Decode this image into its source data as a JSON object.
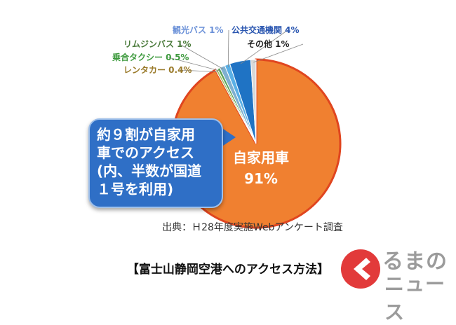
{
  "chart_data": {
    "type": "pie",
    "categories": [
      "自家用車",
      "レンタカー",
      "乗合タクシー",
      "リムジンバス",
      "観光バス",
      "公共交通機関",
      "その他"
    ],
    "values": [
      91,
      0.4,
      0.5,
      1,
      1,
      4,
      1
    ],
    "colors": [
      "#f08030",
      "#a4c068",
      "#5aa35a",
      "#7fb0d0",
      "#5ab0e6",
      "#1f73c4",
      "#d8d8d8"
    ],
    "slice_labels": [
      "",
      "レンタカー 0.4%",
      "乗合タクシー 0.5%",
      "リムジンバス 1%",
      "観光バス 1%",
      "公共交通機関 4%",
      "その他 1%"
    ],
    "label_colors": [
      "#ffffff",
      "#9a7a2a",
      "#3e9a3e",
      "#4a7a3a",
      "#6a90d8",
      "#2a56b0",
      "#222222"
    ],
    "main_label_name": "自家用車",
    "main_label_value": "91%",
    "title": ""
  },
  "callout": {
    "text": "約９割が自家用\n車でのアクセス\n(内、半数が国道\n１号を利用)"
  },
  "source_text": "出典：Ｈ28年度実施Webアンケート調査",
  "caption_text": "【富士山静岡空港へのアクセス方法】",
  "watermark": {
    "line1": "るまの",
    "line2": "ニュース",
    "brand_color": "#e23a3a"
  }
}
